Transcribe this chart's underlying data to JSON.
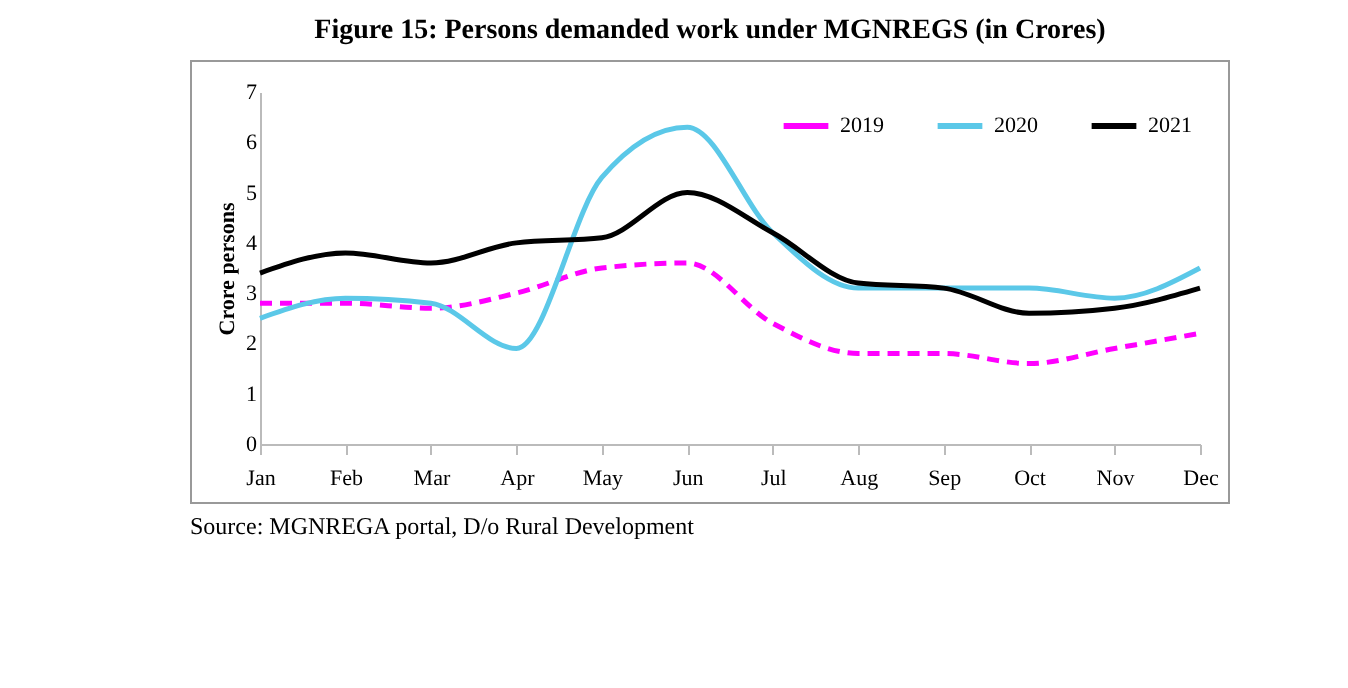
{
  "chart_data": {
    "type": "line",
    "title": "Figure 15: Persons demanded work under MGNREGS (in Crores)",
    "ylabel": "Crore persons",
    "categories": [
      "Jan",
      "Feb",
      "Mar",
      "Apr",
      "May",
      "Jun",
      "Jul",
      "Aug",
      "Sep",
      "Oct",
      "Nov",
      "Dec"
    ],
    "series": [
      {
        "name": "2019",
        "color": "#ff00ff",
        "line_style": "dashed",
        "values": [
          2.8,
          2.8,
          2.7,
          3.0,
          3.5,
          3.6,
          2.4,
          1.8,
          1.8,
          1.6,
          1.9,
          2.2
        ]
      },
      {
        "name": "2020",
        "color": "#5bc8e8",
        "line_style": "solid",
        "values": [
          2.5,
          2.9,
          2.8,
          1.9,
          5.3,
          6.3,
          4.2,
          3.1,
          3.1,
          3.1,
          2.9,
          3.5
        ]
      },
      {
        "name": "2021",
        "color": "#000000",
        "line_style": "solid",
        "values": [
          3.4,
          3.8,
          3.6,
          4.0,
          4.1,
          5.0,
          4.2,
          3.2,
          3.1,
          2.6,
          2.7,
          3.1
        ]
      }
    ],
    "ylim": [
      0,
      7
    ],
    "yticks": [
      0,
      1,
      2,
      3,
      4,
      5,
      6,
      7
    ],
    "grid": false,
    "legend": "top right",
    "marker": "none",
    "annotations": [
      "Source: MGNREGA portal, D/o Rural Development"
    ]
  }
}
